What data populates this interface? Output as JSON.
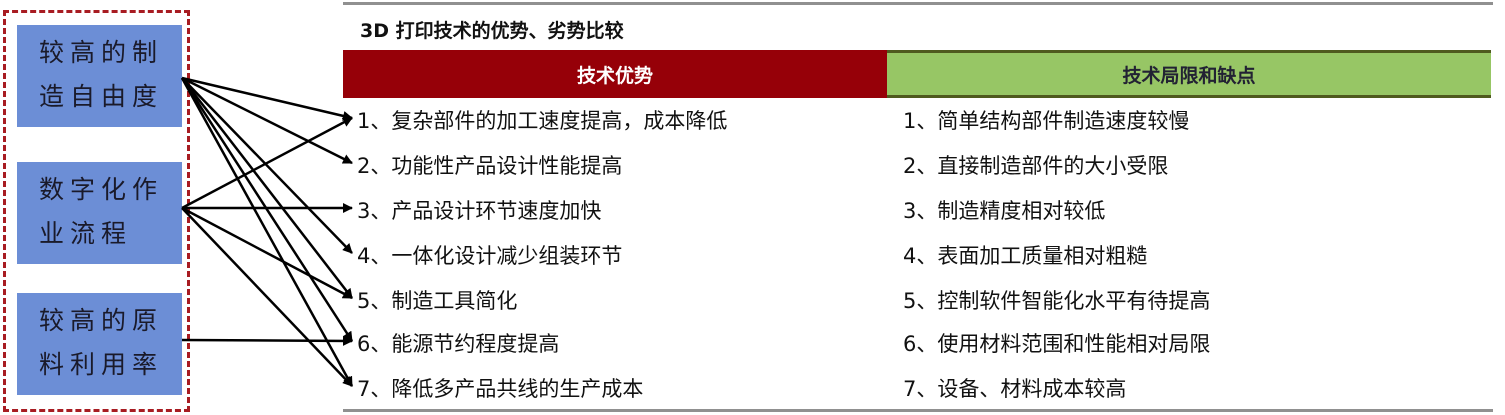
{
  "features": [
    {
      "label": "较高的制造自由度",
      "lines": [
        "较高的制",
        "造自由度"
      ]
    },
    {
      "label": "数字化作业流程",
      "lines": [
        "数字化作",
        "业流程"
      ]
    },
    {
      "label": "较高的原料利用率",
      "lines": [
        "较高的原",
        "料利用率"
      ]
    }
  ],
  "title": "3D 打印技术的优势、劣势比较",
  "advantages_header": "技术优势",
  "limitations_header": "技术局限和缺点",
  "advantages": [
    "1、复杂部件的加工速度提高，成本降低",
    "2、功能性产品设计性能提高",
    "3、产品设计环节速度加快",
    "4、一体化设计减少组装环节",
    "5、制造工具简化",
    "6、能源节约程度提高",
    "7、降低多产品共线的生产成本"
  ],
  "limitations": [
    "1、简单结构部件制造速度较慢",
    "2、直接制造部件的大小受限",
    "3、制造精度相对较低",
    "4、表面加工质量相对粗糙",
    "5、控制软件智能化水平有待提高",
    "6、使用材料范围和性能相对局限",
    "7、设备、材料成本较高"
  ],
  "links": [
    {
      "from": 0,
      "to": [
        1,
        2,
        4,
        5,
        6,
        7
      ]
    },
    {
      "from": 1,
      "to": [
        1,
        3,
        5,
        7
      ]
    },
    {
      "from": 2,
      "to": [
        6
      ]
    }
  ],
  "colors": {
    "advantage_header": "#960008",
    "limitation_header": "#97c665",
    "feature_box": "#6c8ed6",
    "dashed_border": "#a81c22"
  }
}
